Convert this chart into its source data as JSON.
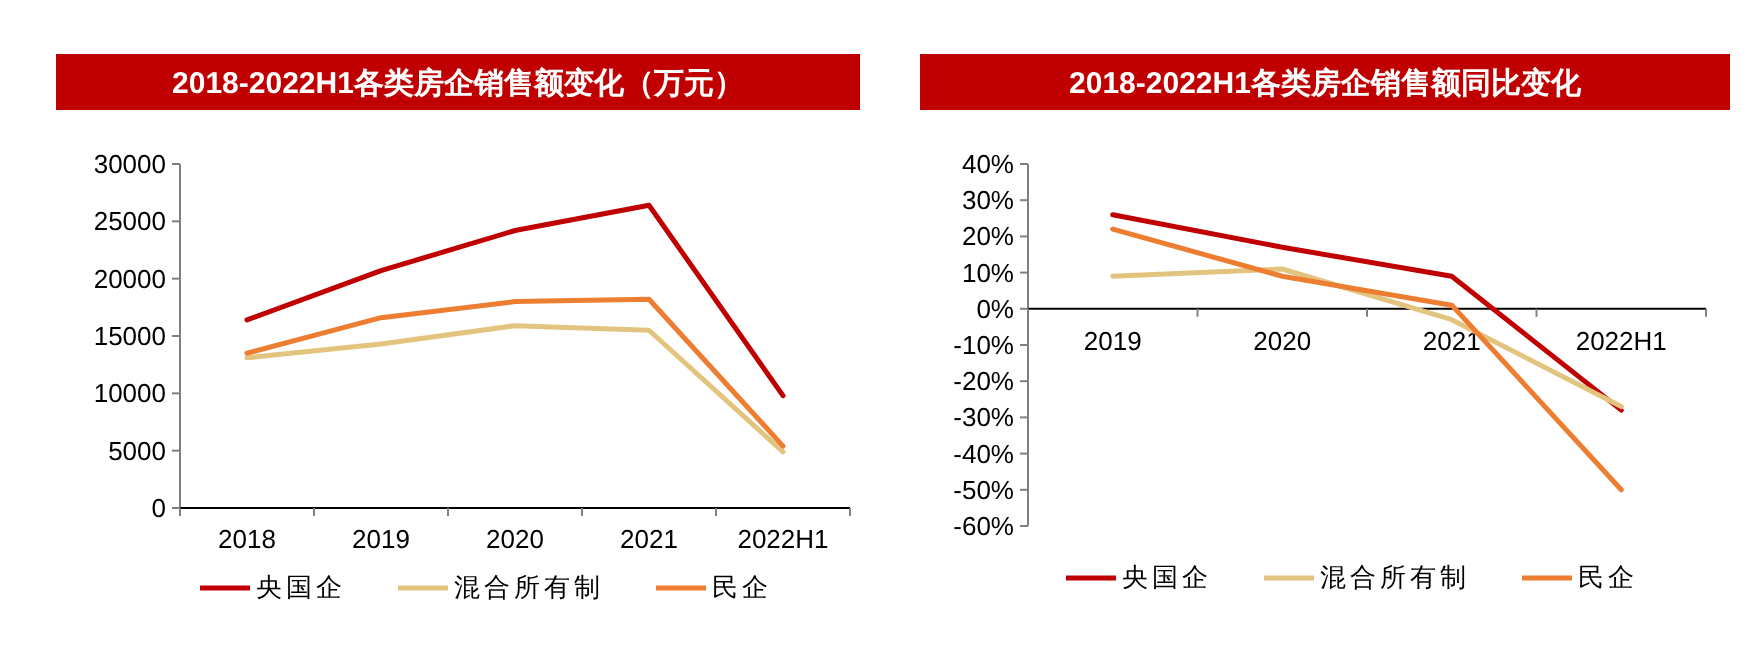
{
  "chart_data": [
    {
      "type": "line",
      "title": "2018-2022H1各类房企销售额变化（万元）",
      "categories": [
        "2018",
        "2019",
        "2020",
        "2021",
        "2022H1"
      ],
      "series": [
        {
          "name": "央国企",
          "color": "#c00000",
          "values": [
            16400,
            20700,
            24200,
            26400,
            9800
          ]
        },
        {
          "name": "混合所有制",
          "color": "#e3c47e",
          "values": [
            13100,
            14300,
            15900,
            15500,
            4900
          ]
        },
        {
          "name": "民企",
          "color": "#ed7d31",
          "values": [
            13500,
            16600,
            18000,
            18200,
            5400
          ]
        }
      ],
      "ylim": [
        0,
        30000
      ],
      "yticks": [
        0,
        5000,
        10000,
        15000,
        20000,
        25000,
        30000
      ],
      "legend": "bottom"
    },
    {
      "type": "line",
      "title": "2018-2022H1各类房企销售额同比变化",
      "categories": [
        "2019",
        "2020",
        "2021",
        "2022H1"
      ],
      "series": [
        {
          "name": "央国企",
          "color": "#c00000",
          "values": [
            26,
            17,
            9,
            -28
          ]
        },
        {
          "name": "混合所有制",
          "color": "#e3c47e",
          "values": [
            9,
            11,
            -3,
            -27
          ]
        },
        {
          "name": "民企",
          "color": "#ed7d31",
          "values": [
            22,
            9,
            1,
            -50
          ]
        }
      ],
      "ylim": [
        -60,
        40
      ],
      "yticks": [
        {
          "value": -60,
          "label": "-60%"
        },
        {
          "value": -50,
          "label": "-50%"
        },
        {
          "value": -40,
          "label": "-40%"
        },
        {
          "value": -30,
          "label": "-30%"
        },
        {
          "value": -20,
          "label": "-20%"
        },
        {
          "value": -10,
          "label": "-10%"
        },
        {
          "value": 0,
          "label": "0%"
        },
        {
          "value": 10,
          "label": "10%"
        },
        {
          "value": 20,
          "label": "20%"
        },
        {
          "value": 30,
          "label": "30%"
        },
        {
          "value": 40,
          "label": "40%"
        }
      ],
      "legend": "bottom"
    }
  ]
}
